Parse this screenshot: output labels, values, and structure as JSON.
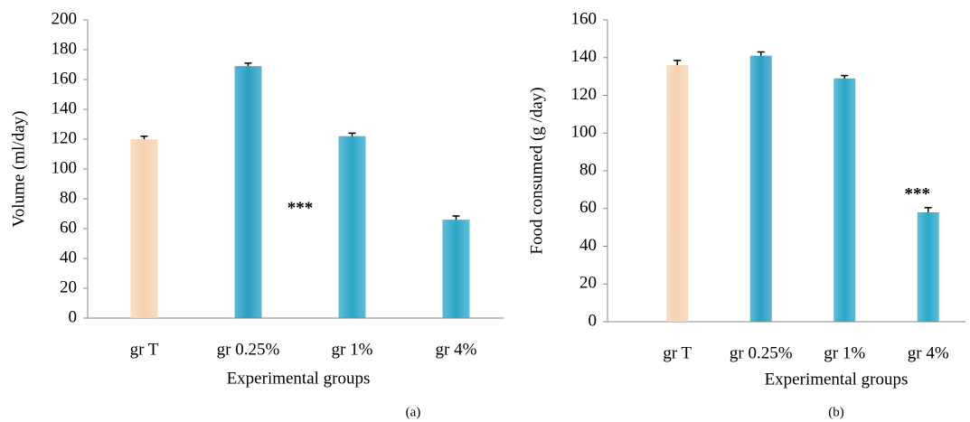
{
  "chart_data": [
    {
      "type": "bar",
      "caption": "(a)",
      "x_label": "Experimental groups",
      "y_label": "Volume (ml/day)",
      "categories": [
        "gr T",
        "gr 0.25%",
        "gr 1%",
        "gr 4%"
      ],
      "values": [
        120,
        169,
        122,
        66
      ],
      "errors": [
        2,
        2,
        2,
        2.5
      ],
      "colors": [
        "#f6d2b0",
        "#2a9fc2",
        "#2aa7c9",
        "#2aa7c9"
      ],
      "ylim": [
        0,
        200
      ],
      "yticks": [
        0,
        20,
        40,
        60,
        80,
        100,
        120,
        140,
        160,
        180,
        200
      ],
      "annotation": "***"
    },
    {
      "type": "bar",
      "caption": "(b)",
      "x_label": "Experimental groups",
      "y_label": "Food consumed (g /day)",
      "categories": [
        "gr T",
        "gr 0.25%",
        "gr 1%",
        "gr 4%"
      ],
      "values": [
        136,
        141,
        129,
        58
      ],
      "errors": [
        2.5,
        2,
        1.5,
        2.5
      ],
      "colors": [
        "#f6d2b0",
        "#2a9fc2",
        "#2aa7c9",
        "#2aa7c9"
      ],
      "ylim": [
        0,
        160
      ],
      "yticks": [
        0,
        20,
        40,
        60,
        80,
        100,
        120,
        140,
        160
      ],
      "annotation": "***"
    }
  ]
}
